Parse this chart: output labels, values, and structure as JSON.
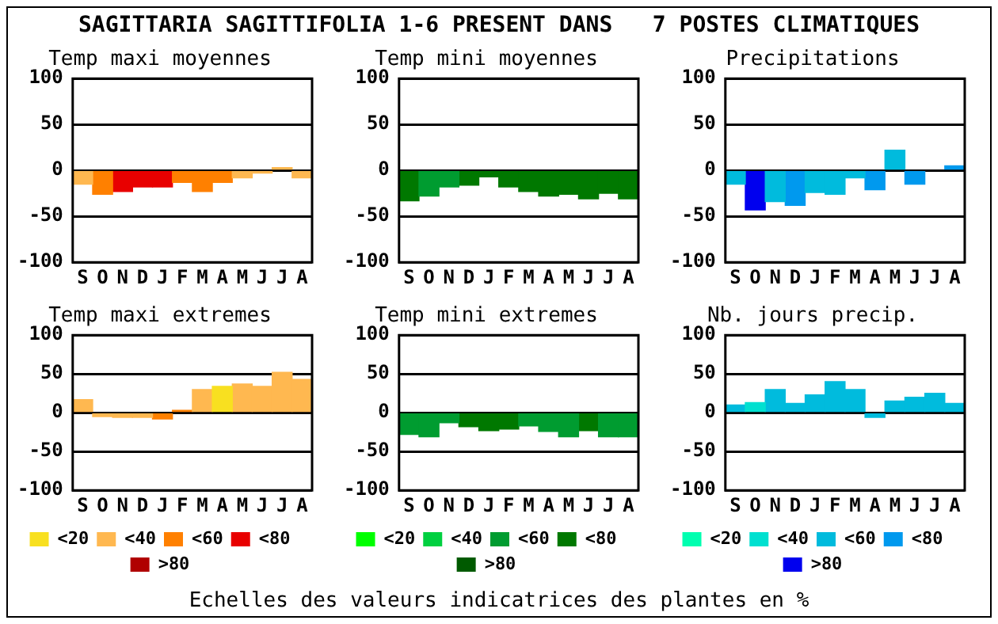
{
  "chart_data": [
    {
      "type": "other",
      "title": "SAGITTARIA SAGITTIFOLIA 1-6 PRESENT DANS   7 POSTES CLIMATIQUES",
      "annotations": [
        "Echelles des valeurs indicatrices des plantes en %"
      ]
    },
    {
      "type": "bar",
      "title": "Temp maxi moyennes",
      "categories": [
        "S",
        "O",
        "N",
        "D",
        "J",
        "F",
        "M",
        "A",
        "M",
        "J",
        "J",
        "A"
      ],
      "stacked": true,
      "ylim": [
        -100,
        100
      ],
      "yticks": [
        -100,
        -50,
        0,
        50,
        100
      ],
      "grid": "y",
      "series": [
        {
          "color": "#ffb850",
          "values": [
            -15,
            null,
            null,
            null,
            null,
            null,
            null,
            null,
            -8,
            -3,
            3,
            -8
          ]
        },
        {
          "color": "#ff8000",
          "values": [
            null,
            -26,
            null,
            null,
            null,
            -13,
            -23,
            -13,
            null,
            null,
            null,
            null
          ]
        },
        {
          "color": "#e80000",
          "values": [
            null,
            null,
            -23,
            -18,
            -18,
            null,
            null,
            null,
            null,
            null,
            null,
            null
          ]
        }
      ]
    },
    {
      "type": "bar",
      "title": "Temp mini moyennes",
      "categories": [
        "S",
        "O",
        "N",
        "D",
        "J",
        "F",
        "M",
        "A",
        "M",
        "J",
        "J",
        "A"
      ],
      "stacked": true,
      "ylim": [
        -100,
        100
      ],
      "yticks": [
        -100,
        -50,
        0,
        50,
        100
      ],
      "grid": "y",
      "series": [
        {
          "color": "#009c30",
          "values": [
            null,
            -28,
            -18,
            null,
            null,
            null,
            null,
            null,
            null,
            null,
            null,
            null
          ]
        },
        {
          "color": "#007800",
          "values": [
            -33,
            null,
            null,
            -16,
            -7,
            -18,
            -23,
            -28,
            -26,
            -31,
            -25,
            -31
          ]
        }
      ]
    },
    {
      "type": "bar",
      "title": "Precipitations",
      "categories": [
        "S",
        "O",
        "N",
        "D",
        "J",
        "F",
        "M",
        "A",
        "M",
        "J",
        "J",
        "A"
      ],
      "stacked": true,
      "ylim": [
        -100,
        100
      ],
      "yticks": [
        -100,
        -50,
        0,
        50,
        100
      ],
      "grid": "y",
      "series": [
        {
          "color": "#00bbdd",
          "values": [
            -15,
            null,
            -34,
            null,
            -24,
            -26,
            -8,
            null,
            22,
            null,
            null,
            null
          ]
        },
        {
          "color": "#0099ee",
          "values": [
            null,
            null,
            null,
            -38,
            null,
            null,
            null,
            -21,
            null,
            -15,
            null,
            5
          ]
        },
        {
          "color": "#0000ee",
          "values": [
            null,
            -43,
            null,
            null,
            null,
            null,
            null,
            null,
            null,
            null,
            null,
            null
          ]
        }
      ]
    },
    {
      "type": "bar",
      "title": "Temp maxi extremes",
      "categories": [
        "S",
        "O",
        "N",
        "D",
        "J",
        "F",
        "M",
        "A",
        "M",
        "J",
        "J",
        "A"
      ],
      "stacked": true,
      "ylim": [
        -100,
        100
      ],
      "yticks": [
        -100,
        -50,
        0,
        50,
        100
      ],
      "grid": "y",
      "legend": "bottom",
      "series": [
        {
          "name": "<20",
          "color": "#f8e020",
          "values": [
            null,
            null,
            null,
            null,
            null,
            null,
            null,
            34,
            null,
            null,
            null,
            null
          ]
        },
        {
          "name": "<40",
          "color": "#ffb850",
          "values": [
            17,
            -5,
            -6,
            -6,
            null,
            null,
            30,
            null,
            37,
            34,
            52,
            43
          ]
        },
        {
          "name": "<60",
          "color": "#ff8000",
          "values": [
            null,
            null,
            null,
            null,
            -8,
            3,
            null,
            null,
            null,
            null,
            null,
            null
          ]
        },
        {
          "name": "<80",
          "color": "#e80000",
          "values": [
            null,
            null,
            null,
            null,
            null,
            null,
            null,
            null,
            null,
            null,
            null,
            null
          ]
        },
        {
          "name": ">80",
          "color": "#b00000",
          "values": [
            null,
            null,
            null,
            null,
            null,
            null,
            null,
            null,
            null,
            null,
            null,
            null
          ]
        }
      ]
    },
    {
      "type": "bar",
      "title": "Temp mini extremes",
      "categories": [
        "S",
        "O",
        "N",
        "D",
        "J",
        "F",
        "M",
        "A",
        "M",
        "J",
        "J",
        "A"
      ],
      "stacked": true,
      "ylim": [
        -100,
        100
      ],
      "yticks": [
        -100,
        -50,
        0,
        50,
        100
      ],
      "grid": "y",
      "legend": "bottom",
      "series": [
        {
          "name": "<20",
          "color": "#00ff00",
          "values": [
            null,
            null,
            null,
            null,
            null,
            null,
            null,
            null,
            null,
            null,
            null,
            null
          ]
        },
        {
          "name": "<40",
          "color": "#00d040",
          "values": [
            null,
            null,
            null,
            null,
            null,
            null,
            null,
            null,
            null,
            null,
            null,
            null
          ]
        },
        {
          "name": "<60",
          "color": "#009c30",
          "values": [
            -28,
            -31,
            -13,
            null,
            null,
            null,
            -17,
            -24,
            -31,
            null,
            -31,
            -31
          ]
        },
        {
          "name": "<80",
          "color": "#007800",
          "values": [
            null,
            null,
            null,
            -18,
            -23,
            -21,
            null,
            null,
            null,
            -23,
            null,
            null
          ]
        },
        {
          "name": ">80",
          "color": "#005a00",
          "values": [
            null,
            null,
            null,
            null,
            null,
            null,
            null,
            null,
            null,
            null,
            null,
            null
          ]
        }
      ]
    },
    {
      "type": "bar",
      "title": "Nb. jours precip.",
      "categories": [
        "S",
        "O",
        "N",
        "D",
        "J",
        "F",
        "M",
        "A",
        "M",
        "J",
        "J",
        "A"
      ],
      "stacked": true,
      "ylim": [
        -100,
        100
      ],
      "yticks": [
        -100,
        -50,
        0,
        50,
        100
      ],
      "grid": "y",
      "legend": "bottom",
      "series": [
        {
          "name": "<20",
          "color": "#00ffb0",
          "values": [
            null,
            null,
            null,
            null,
            null,
            null,
            null,
            null,
            null,
            null,
            null,
            null
          ]
        },
        {
          "name": "<40",
          "color": "#00e0d0",
          "values": [
            null,
            13,
            null,
            null,
            null,
            null,
            null,
            null,
            null,
            null,
            null,
            null
          ]
        },
        {
          "name": "<60",
          "color": "#00bbdd",
          "values": [
            10,
            null,
            30,
            12,
            23,
            40,
            30,
            -6,
            15,
            20,
            25,
            12
          ]
        },
        {
          "name": "<80",
          "color": "#0099ee",
          "values": [
            null,
            null,
            null,
            null,
            null,
            null,
            null,
            null,
            null,
            null,
            null,
            null
          ]
        },
        {
          "name": ">80",
          "color": "#0000ee",
          "values": [
            null,
            null,
            null,
            null,
            null,
            null,
            null,
            null,
            null,
            null,
            null,
            null
          ]
        }
      ]
    }
  ]
}
